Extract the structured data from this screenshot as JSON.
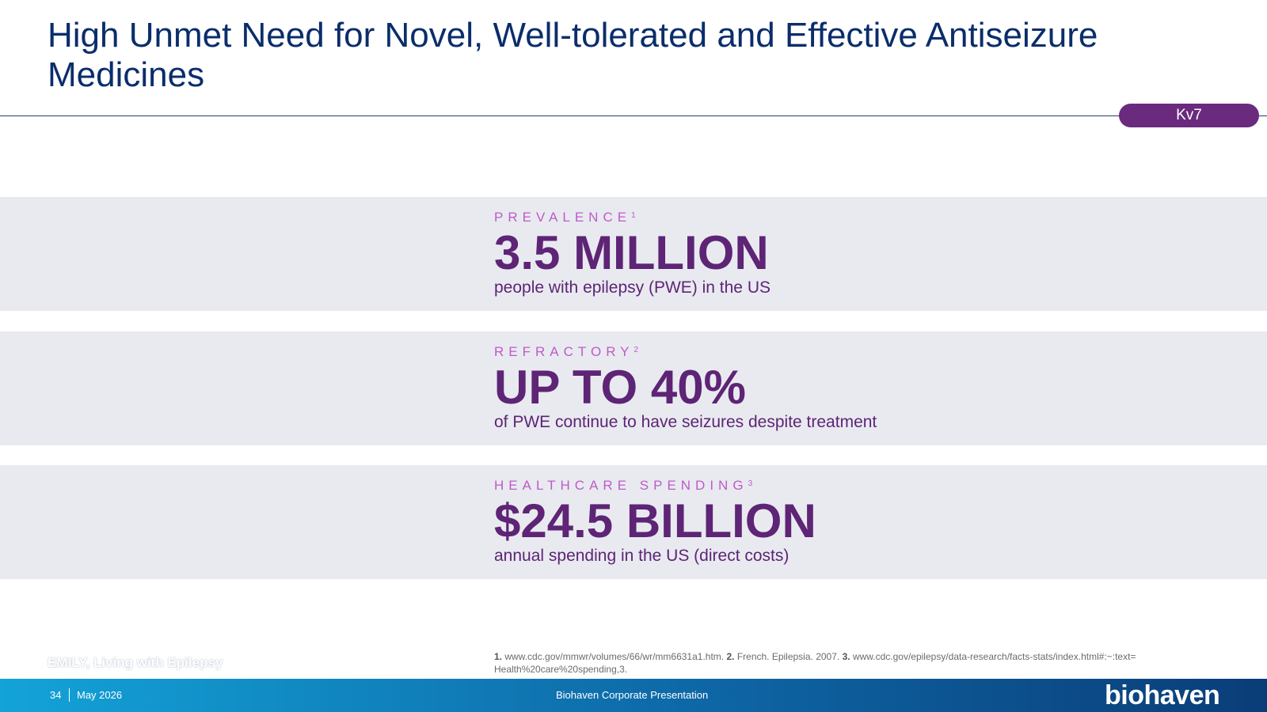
{
  "header": {
    "title": "High Unmet Need for Novel, Well-tolerated and Effective Antiseizure Medicines",
    "tag": "Kv7"
  },
  "stats": [
    {
      "label": "PREVALENCE",
      "ref": "1",
      "value": "3.5 MILLION",
      "description": "people with epilepsy (PWE) in the US"
    },
    {
      "label": "REFRACTORY",
      "ref": "2",
      "value": "UP TO 40%",
      "description": "of PWE continue to have seizures despite treatment"
    },
    {
      "label": "HEALTHCARE SPENDING",
      "ref": "3",
      "value": "$24.5 BILLION",
      "description": "annual spending in the US (direct costs)"
    }
  ],
  "image_caption": "EMILY, Living with Epilepsy",
  "footnotes": [
    {
      "num": "1.",
      "text": "www.cdc.gov/mmwr/volumes/66/wr/mm6631a1.htm."
    },
    {
      "num": "2.",
      "text": "French. Epilepsia. 2007."
    },
    {
      "num": "3.",
      "text": "www.cdc.gov/epilepsy/data-research/facts-stats/index.html#:~:text= Health%20care%20spending,3."
    }
  ],
  "footer": {
    "page_number": "34",
    "date": "May 2026",
    "presentation": "Biohaven Corporate Presentation",
    "logo": "biohaven"
  },
  "colors": {
    "title": "#0a2d6b",
    "accent_purple": "#5e2475",
    "label_pink": "#c05ac8",
    "band_gray": "#e8eaf0",
    "footer_start": "#13a3d8",
    "footer_end": "#0a3d78"
  }
}
